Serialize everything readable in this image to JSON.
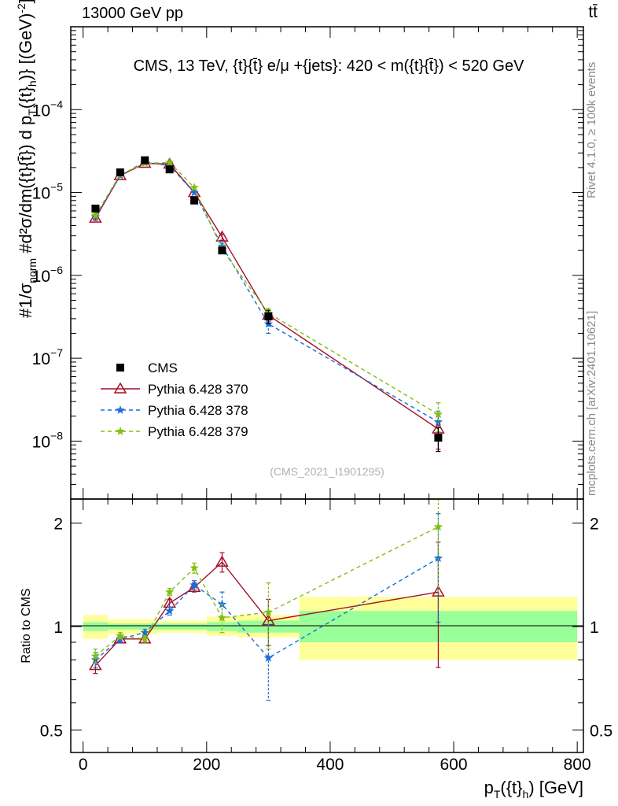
{
  "header": {
    "left": "13000 GeV pp",
    "right": "tt̄"
  },
  "side": {
    "rivet": "Rivet 4.1.0, ≥ 100k events",
    "mcplots": "mcplots.cern.ch [arXiv:2401.10621]"
  },
  "colors": {
    "cms": "#000000",
    "p370": "#a50f2a",
    "p378": "#1a6ed8",
    "p379": "#80c010",
    "band_inner": "#99ff99",
    "band_outer": "#ffff99"
  },
  "chart_data": [
    {
      "type": "line",
      "title": "CMS, 13 TeV, {t}{t̄} e/μ +{jets}: 420 < m({t}{t̄}) < 520 GeV",
      "ylabel": "#1/σ_norm #d²σ/dm({t}{t̄}) d p_T({t}_h)} [(GeV)⁻²]",
      "xlabel": "p_T({t}_h) [GeV]",
      "yscale": "log",
      "ylim": [
        2e-09,
        0.001
      ],
      "xlim": [
        -20,
        810
      ],
      "y_ticks": [
        {
          "value": 0.0001,
          "label": "10",
          "exp": "−4"
        },
        {
          "value": 1e-05,
          "label": "10",
          "exp": "−5"
        },
        {
          "value": 1e-06,
          "label": "10",
          "exp": "−6"
        },
        {
          "value": 1e-07,
          "label": "10",
          "exp": "−7"
        },
        {
          "value": 1e-08,
          "label": "10",
          "exp": "−8"
        }
      ],
      "x": [
        20,
        60,
        100,
        140,
        180,
        225,
        300,
        575
      ],
      "series": [
        {
          "name": "CMS",
          "style": "square",
          "values": [
            6.4e-06,
            1.75e-05,
            2.45e-05,
            1.9e-05,
            8e-06,
            2e-06,
            3.2e-07,
            1.1e-08
          ],
          "err_lo": [
            0,
            0,
            0,
            0,
            0,
            0,
            6e-08,
            3.5e-09
          ],
          "err_hi": [
            0,
            0,
            0,
            0,
            0,
            0,
            6e-08,
            3.5e-09
          ]
        },
        {
          "name": "Pythia 6.428 370",
          "style": "triangle",
          "values": [
            4.9e-06,
            1.6e-05,
            2.25e-05,
            2.2e-05,
            1e-05,
            2.9e-06,
            3.3e-07,
            1.4e-08
          ],
          "err_lo": [
            3e-07,
            0,
            0,
            0,
            0,
            2.5e-07,
            5e-08,
            6e-09
          ],
          "err_hi": [
            3e-07,
            0,
            0,
            0,
            0,
            2.5e-07,
            5e-08,
            6e-09
          ]
        },
        {
          "name": "Pythia 6.428 378",
          "style": "star",
          "values": [
            5.1e-06,
            1.6e-05,
            2.35e-05,
            2.1e-05,
            1e-05,
            2.25e-06,
            2.6e-07,
            1.7e-08
          ],
          "err_lo": [
            3e-07,
            0,
            0,
            0,
            0,
            2e-07,
            6e-08,
            6e-09
          ],
          "err_hi": [
            3e-07,
            0,
            0,
            0,
            0,
            2e-07,
            6e-08,
            6e-09
          ]
        },
        {
          "name": "Pythia 6.428 379",
          "style": "star",
          "values": [
            5.3e-06,
            1.65e-05,
            2.25e-05,
            2.3e-05,
            1.15e-05,
            2.05e-06,
            3.5e-07,
            2.1e-08
          ],
          "err_lo": [
            3e-07,
            0,
            0,
            0,
            0,
            2e-07,
            5e-08,
            8e-09
          ],
          "err_hi": [
            3e-07,
            0,
            0,
            0,
            0,
            2e-07,
            5e-08,
            8e-09
          ]
        }
      ],
      "legend": [
        "CMS",
        "Pythia 6.428 370",
        "Pythia 6.428 378",
        "Pythia 6.428 379"
      ],
      "legend_position": "bottom-left",
      "watermark": "(CMS_2021_I1901295)"
    },
    {
      "type": "line",
      "ylabel": "Ratio to CMS",
      "xlabel": "p_T({t}_h) [GeV]",
      "yscale": "log",
      "ylim": [
        0.43,
        2.35
      ],
      "xlim": [
        -20,
        810
      ],
      "x_ticks": [
        0,
        200,
        400,
        600,
        800
      ],
      "y_ticks": [
        {
          "value": 0.5,
          "label": "0.5"
        },
        {
          "value": 1,
          "label": "1"
        },
        {
          "value": 2,
          "label": "2"
        }
      ],
      "bands": [
        {
          "x0": 0,
          "x1": 40,
          "inner": [
            0.97,
            1.03
          ],
          "outer": [
            0.92,
            1.08
          ]
        },
        {
          "x0": 40,
          "x1": 80,
          "inner": [
            0.98,
            1.02
          ],
          "outer": [
            0.95,
            1.05
          ]
        },
        {
          "x0": 80,
          "x1": 120,
          "inner": [
            0.98,
            1.02
          ],
          "outer": [
            0.95,
            1.05
          ]
        },
        {
          "x0": 120,
          "x1": 160,
          "inner": [
            0.98,
            1.02
          ],
          "outer": [
            0.96,
            1.04
          ]
        },
        {
          "x0": 160,
          "x1": 200,
          "inner": [
            0.98,
            1.02
          ],
          "outer": [
            0.96,
            1.04
          ]
        },
        {
          "x0": 200,
          "x1": 250,
          "inner": [
            0.97,
            1.03
          ],
          "outer": [
            0.94,
            1.07
          ]
        },
        {
          "x0": 250,
          "x1": 350,
          "inner": [
            0.96,
            1.04
          ],
          "outer": [
            0.93,
            1.08
          ]
        },
        {
          "x0": 350,
          "x1": 800,
          "inner": [
            0.9,
            1.11
          ],
          "outer": [
            0.8,
            1.22
          ]
        }
      ],
      "series": [
        {
          "name": "Pythia 6.428 370",
          "values": [
            0.77,
            0.92,
            0.92,
            1.17,
            1.3,
            1.54,
            1.04,
            1.26
          ],
          "err": [
            0.04,
            0.02,
            0.02,
            0.03,
            0.04,
            0.1,
            0.16,
            0.5
          ]
        },
        {
          "name": "Pythia 6.428 378",
          "values": [
            0.8,
            0.92,
            0.96,
            1.11,
            1.32,
            1.16,
            0.81,
            1.58
          ],
          "err": [
            0.04,
            0.02,
            0.02,
            0.03,
            0.04,
            0.1,
            0.2,
            0.55
          ]
        },
        {
          "name": "Pythia 6.428 379",
          "values": [
            0.82,
            0.94,
            0.92,
            1.26,
            1.48,
            1.06,
            1.1,
            1.95
          ],
          "err": [
            0.04,
            0.02,
            0.02,
            0.03,
            0.05,
            0.1,
            0.24,
            0.7
          ]
        }
      ]
    }
  ]
}
